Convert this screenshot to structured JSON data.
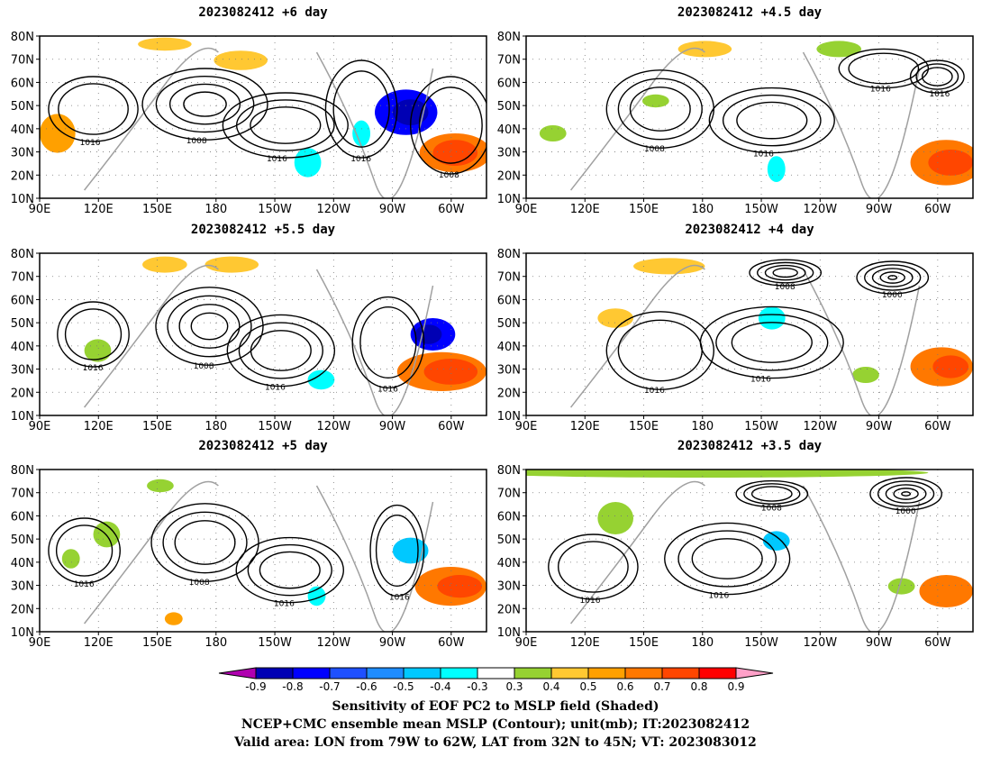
{
  "panels": [
    {
      "title": "2023082412 +6 day"
    },
    {
      "title": "2023082412 +4.5 day"
    },
    {
      "title": "2023082412 +5.5 day"
    },
    {
      "title": "2023082412 +4 day"
    },
    {
      "title": "2023082412 +5 day"
    },
    {
      "title": "2023082412 +3.5 day"
    }
  ],
  "lat_labels": [
    "10N",
    "20N",
    "30N",
    "40N",
    "50N",
    "60N",
    "70N",
    "80N"
  ],
  "lon_labels": [
    "90E",
    "120E",
    "150E",
    "180",
    "150W",
    "120W",
    "90W",
    "60W"
  ],
  "contour_labels": [
    "1016",
    "1008",
    "1000"
  ],
  "colorbar": {
    "ticks": [
      "-0.9",
      "-0.8",
      "-0.7",
      "-0.6",
      "-0.5",
      "-0.4",
      "-0.3",
      "0.3",
      "0.4",
      "0.5",
      "0.6",
      "0.7",
      "0.8",
      "0.9"
    ],
    "colors": [
      "#b000b0",
      "#0000b4",
      "#0000ff",
      "#1e50ff",
      "#1e8cff",
      "#00c8ff",
      "#00ffff",
      "#ffffff",
      "#96d232",
      "#ffc832",
      "#ffa000",
      "#ff7800",
      "#ff4600",
      "#ff0000",
      "#ffa0c8"
    ]
  },
  "caption": {
    "line1": "Sensitivity of EOF PC2 to MSLP field (Shaded)",
    "line2": "NCEP+CMC ensemble mean MSLP (Contour); unit(mb); IT:2023082412",
    "line3": "Valid area: LON from 79W to 62W, LAT from 32N to 45N; VT: 2023083012"
  }
}
